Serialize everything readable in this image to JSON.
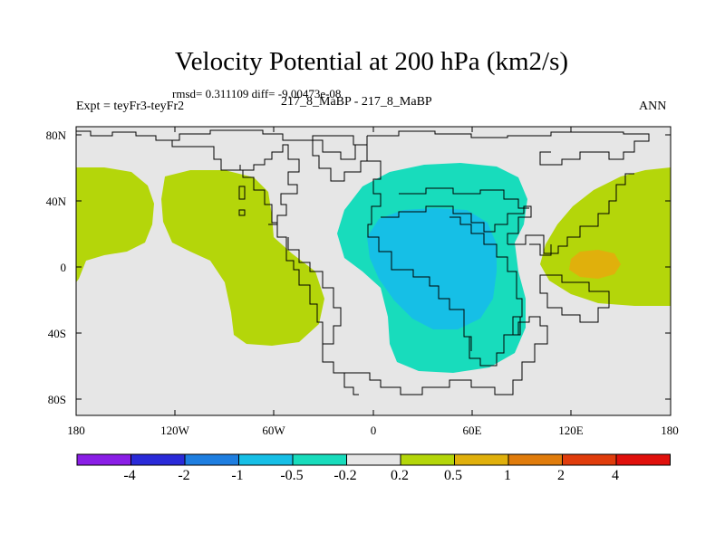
{
  "title": "Velocity Potential at 200 hPa (km2/s)",
  "stats": "rmsd= 0.311109 diff= -9.00473e-08",
  "left_label": "Expt = teyFr3-teyFr2",
  "center_label": "217_8_MaBP - 217_8_MaBP",
  "right_label": "ANN",
  "y_ticks": [
    "80N",
    "40N",
    "0",
    "40S",
    "80S"
  ],
  "x_ticks": [
    "180",
    "120W",
    "60W",
    "0",
    "60E",
    "120E",
    "180"
  ],
  "colorbar": {
    "labels": [
      "-4",
      "-2",
      "-1",
      "-0.5",
      "-0.2",
      "0.2",
      "0.5",
      "1",
      "2",
      "4"
    ],
    "colors": [
      "#8a1ee6",
      "#2a2ad8",
      "#1e7ee0",
      "#16bfe6",
      "#18dcbc",
      "#e6e6e6",
      "#b4d60a",
      "#e0b00c",
      "#e07c0c",
      "#e03c0c",
      "#e0100c"
    ]
  },
  "map_colors": {
    "background": "#e6e6e6",
    "positive_weak": "#b4d60a",
    "positive_mid": "#e0b00c",
    "negative_weak": "#18dcbc",
    "negative_mid": "#16bfe6"
  }
}
